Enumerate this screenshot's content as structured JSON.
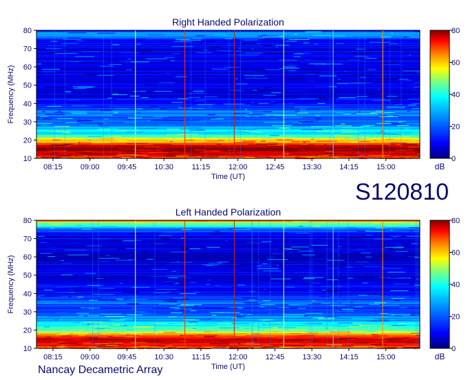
{
  "page": {
    "session_label": "S120810",
    "footer": "Nancay Decametric Array"
  },
  "chart_data": [
    {
      "type": "heatmap",
      "title": "Right Handed Polarization",
      "xlabel": "Time (UT)",
      "ylabel": "Frequency (MHz)",
      "x_ticks": [
        "08:15",
        "09:00",
        "09:45",
        "10:30",
        "11:15",
        "12:00",
        "12:45",
        "13:30",
        "14:15",
        "15:00"
      ],
      "y_ticks": [
        10,
        20,
        30,
        40,
        50,
        60,
        70,
        80
      ],
      "ylim": [
        10,
        80
      ],
      "colorbar": {
        "label": "dB",
        "ticks": [
          0,
          20,
          40,
          60,
          80
        ],
        "range": [
          0,
          80
        ]
      },
      "intensity_profile_db": [
        {
          "freq_mhz": 10,
          "db": 62
        },
        {
          "freq_mhz": 13,
          "db": 72
        },
        {
          "freq_mhz": 15,
          "db": 78
        },
        {
          "freq_mhz": 17,
          "db": 74
        },
        {
          "freq_mhz": 19,
          "db": 58
        },
        {
          "freq_mhz": 21,
          "db": 46
        },
        {
          "freq_mhz": 23,
          "db": 30
        },
        {
          "freq_mhz": 26,
          "db": 26
        },
        {
          "freq_mhz": 28,
          "db": 22
        },
        {
          "freq_mhz": 31,
          "db": 15
        },
        {
          "freq_mhz": 35,
          "db": 20
        },
        {
          "freq_mhz": 40,
          "db": 11
        },
        {
          "freq_mhz": 50,
          "db": 8
        },
        {
          "freq_mhz": 60,
          "db": 7
        },
        {
          "freq_mhz": 73,
          "db": 9
        },
        {
          "freq_mhz": 79,
          "db": 22
        },
        {
          "freq_mhz": 80,
          "db": 14
        }
      ],
      "colormap": [
        "#00007f",
        "#0000ff",
        "#007fff",
        "#00ffff",
        "#7fff7f",
        "#ffff00",
        "#ff7f00",
        "#ff0000",
        "#7f0000"
      ]
    },
    {
      "type": "heatmap",
      "title": "Left Handed Polarization",
      "xlabel": "Time (UT)",
      "ylabel": "Frequency (MHz)",
      "x_ticks": [
        "08:15",
        "09:00",
        "09:45",
        "10:30",
        "11:15",
        "12:00",
        "12:45",
        "13:30",
        "14:15",
        "15:00"
      ],
      "y_ticks": [
        10,
        20,
        30,
        40,
        50,
        60,
        70,
        80
      ],
      "ylim": [
        10,
        80
      ],
      "colorbar": {
        "label": "dB",
        "ticks": [
          0,
          20,
          40,
          60,
          80
        ],
        "range": [
          0,
          80
        ]
      },
      "intensity_profile_db": [
        {
          "freq_mhz": 10,
          "db": 60
        },
        {
          "freq_mhz": 13,
          "db": 70
        },
        {
          "freq_mhz": 15,
          "db": 78
        },
        {
          "freq_mhz": 17,
          "db": 66
        },
        {
          "freq_mhz": 19,
          "db": 45
        },
        {
          "freq_mhz": 21,
          "db": 34
        },
        {
          "freq_mhz": 23,
          "db": 28
        },
        {
          "freq_mhz": 26,
          "db": 24
        },
        {
          "freq_mhz": 28,
          "db": 20
        },
        {
          "freq_mhz": 31,
          "db": 14
        },
        {
          "freq_mhz": 35,
          "db": 18
        },
        {
          "freq_mhz": 40,
          "db": 10
        },
        {
          "freq_mhz": 50,
          "db": 8
        },
        {
          "freq_mhz": 60,
          "db": 7
        },
        {
          "freq_mhz": 73,
          "db": 9
        },
        {
          "freq_mhz": 79,
          "db": 40
        },
        {
          "freq_mhz": 80,
          "db": 70
        }
      ],
      "colormap": [
        "#00007f",
        "#0000ff",
        "#007fff",
        "#00ffff",
        "#7fff7f",
        "#ffff00",
        "#ff7f00",
        "#ff0000",
        "#7f0000"
      ]
    }
  ]
}
